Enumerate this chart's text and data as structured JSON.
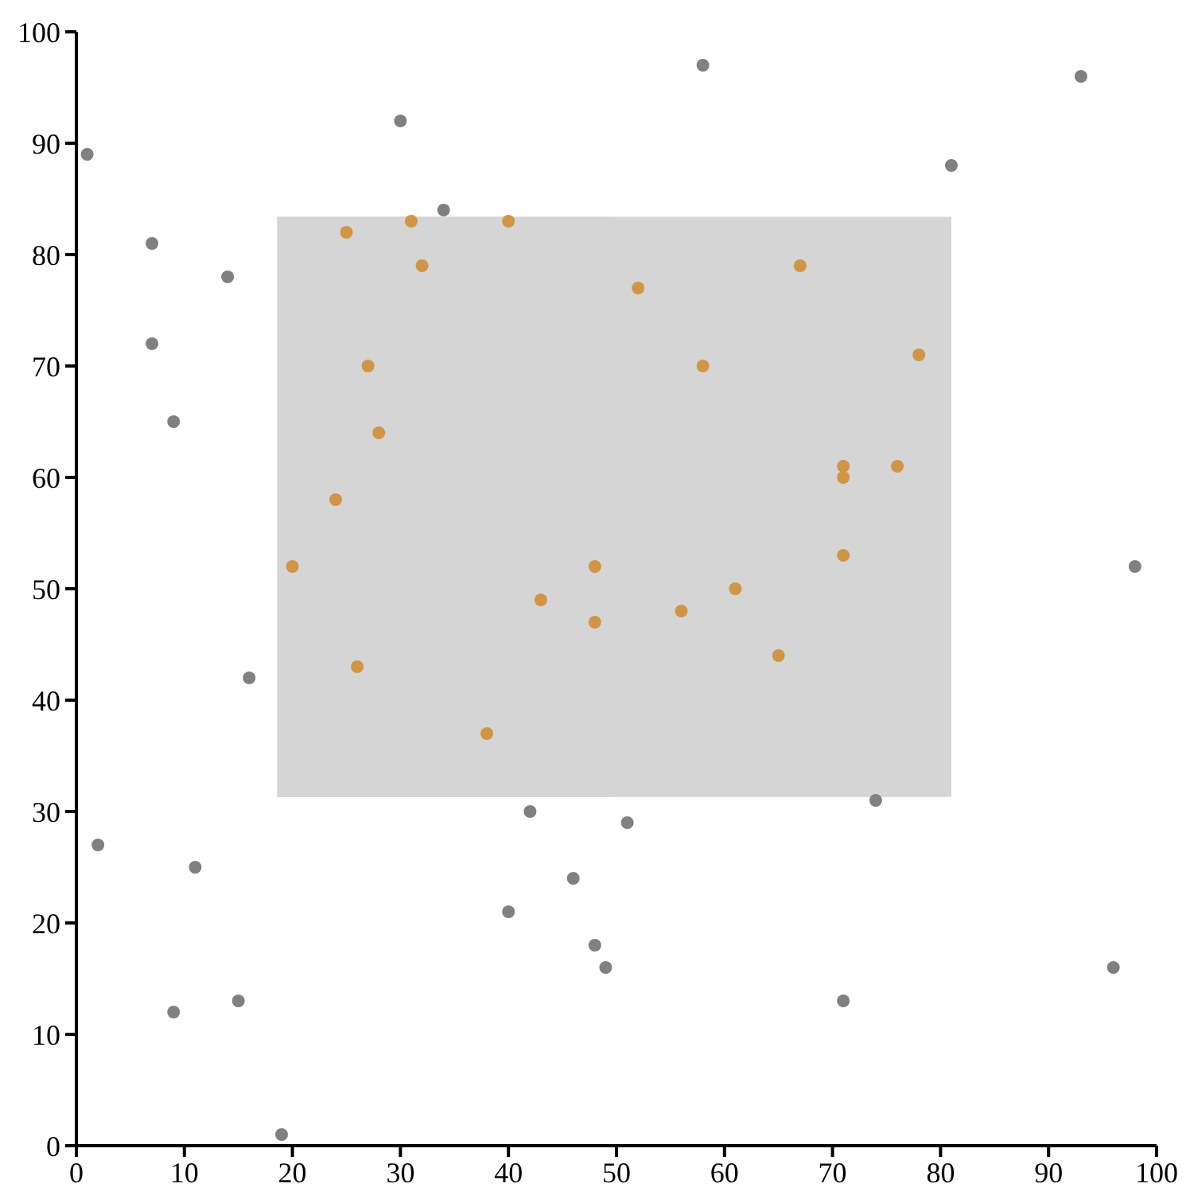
{
  "chart_data": {
    "type": "scatter",
    "marker": "circle",
    "series": [
      {
        "color": "#808080",
        "x": [
          1,
          2,
          7,
          7,
          9,
          9,
          11,
          14,
          15,
          16,
          19,
          30,
          34,
          40,
          42,
          46,
          48,
          49,
          51,
          58,
          71,
          74,
          81,
          93,
          96,
          98
        ],
        "values": [
          89,
          27,
          81,
          72,
          65,
          12,
          25,
          78,
          13,
          42,
          1,
          92,
          84,
          21,
          30,
          24,
          18,
          16,
          29,
          97,
          13,
          31,
          88,
          96,
          16,
          52
        ]
      },
      {
        "color": "#d09545",
        "x": [
          20,
          24,
          25,
          26,
          27,
          28,
          31,
          32,
          38,
          40,
          43,
          48,
          48,
          52,
          56,
          58,
          61,
          65,
          67,
          71,
          71,
          71,
          76,
          78
        ],
        "values": [
          52,
          58,
          82,
          43,
          70,
          64,
          83,
          79,
          37,
          83,
          49,
          52,
          47,
          77,
          48,
          70,
          50,
          44,
          79,
          61,
          60,
          53,
          61,
          71
        ]
      }
    ],
    "bands": [
      {
        "axis": "x",
        "from": 18.6,
        "to": 81,
        "color": "#d5d5d5"
      },
      {
        "axis": "y",
        "from": 31.3,
        "to": 83.4,
        "color": "#d5d5d5"
      }
    ],
    "xlim": [
      0,
      100
    ],
    "ylim": [
      0,
      100
    ],
    "xticks": [
      0,
      10,
      20,
      30,
      40,
      50,
      60,
      70,
      80,
      90,
      100
    ],
    "yticks": [
      0,
      10,
      20,
      30,
      40,
      50,
      60,
      70,
      80,
      90,
      100
    ]
  }
}
